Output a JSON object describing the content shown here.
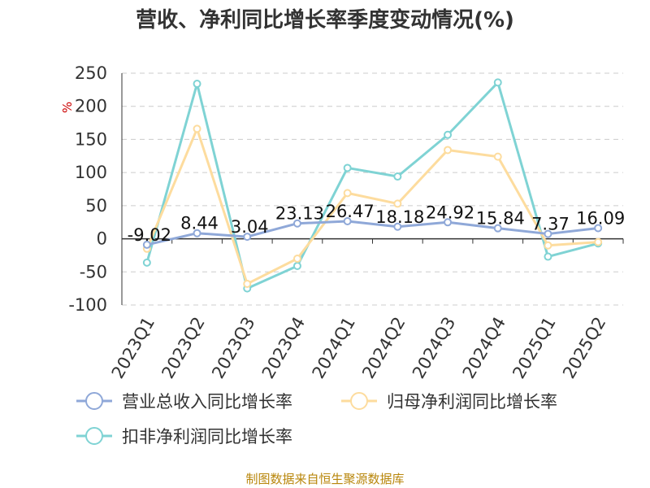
{
  "chart_data": {
    "type": "line",
    "title": "营收、净利同比增长率季度变动情况(%)",
    "ylabel": "%",
    "ylim": [
      -100,
      250
    ],
    "yticks": [
      250,
      200,
      150,
      100,
      50,
      0,
      -50,
      -100
    ],
    "grid": true,
    "legend_position": "bottom",
    "categories": [
      "2023Q1",
      "2023Q2",
      "2023Q3",
      "2023Q4",
      "2024Q1",
      "2024Q2",
      "2024Q3",
      "2024Q4",
      "2025Q1",
      "2025Q2"
    ],
    "series": [
      {
        "name": "营业总收入同比增长率",
        "color": "#8fa8d8",
        "values": [
          -9.02,
          8.44,
          3.04,
          23.13,
          26.47,
          18.18,
          24.92,
          15.84,
          7.37,
          16.09
        ],
        "labels": [
          "-9.02",
          "8.44",
          "3.04",
          "23.13",
          "26.47",
          "18.18",
          "24.92",
          "15.84",
          "7.37",
          "16.09"
        ]
      },
      {
        "name": "归母净利润同比增长率",
        "color": "#fddc9e",
        "values": [
          -15,
          166,
          -68,
          -30,
          69,
          53,
          134,
          124,
          -10,
          -5
        ]
      },
      {
        "name": "扣非净利润同比增长率",
        "color": "#7fd3d4",
        "values": [
          -36,
          234,
          -75,
          -41,
          107,
          94,
          157,
          236,
          -27,
          -7
        ]
      }
    ],
    "source": "制图数据来自恒生聚源数据库"
  }
}
